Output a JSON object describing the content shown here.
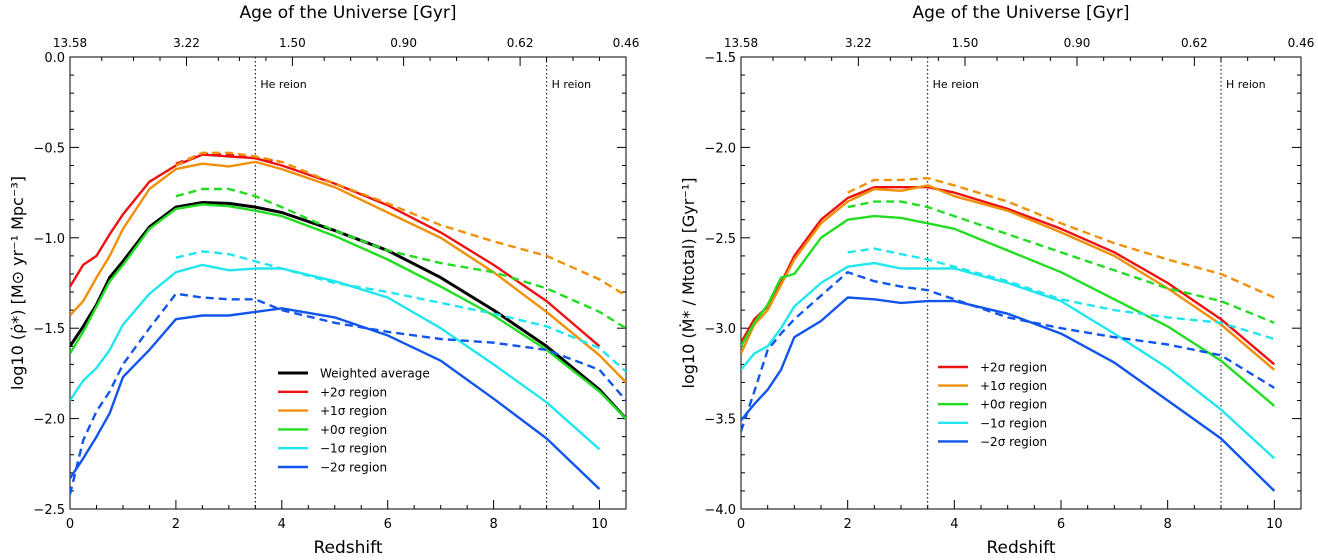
{
  "chart_data": [
    {
      "type": "line",
      "xlabel": "Redshift",
      "top_axis_label": "Age of the Universe [Gyr]",
      "ylabel": "log10 (ρ̇*) [M⊙ yr⁻¹ Mpc⁻³]",
      "xlim": [
        0,
        10.5
      ],
      "ylim": [
        -2.5,
        0.0
      ],
      "x_ticks": [
        0,
        2,
        4,
        6,
        8,
        10
      ],
      "y_ticks": [
        -2.5,
        -2.0,
        -1.5,
        -1.0,
        -0.5,
        0.0
      ],
      "y_tick_labels": [
        "−2.5",
        "−2.0",
        "−1.5",
        "−1.0",
        "−0.5",
        "0.0"
      ],
      "top_ticks": [
        {
          "z": 0,
          "label": "13.58"
        },
        {
          "z": 2.2,
          "label": "3.22"
        },
        {
          "z": 4.2,
          "label": "1.50"
        },
        {
          "z": 6.3,
          "label": "0.90"
        },
        {
          "z": 8.5,
          "label": "0.62"
        },
        {
          "z": 10.5,
          "label": "0.46"
        }
      ],
      "annotations": [
        {
          "x": 3.5,
          "text": "He reion"
        },
        {
          "x": 9.0,
          "text": "H reion"
        }
      ],
      "legend_position": "bottom-center",
      "series": [
        {
          "name": "Weighted average",
          "color": "#000000",
          "dash": false,
          "x": [
            0,
            0.25,
            0.5,
            0.75,
            1,
            1.5,
            2,
            2.5,
            3,
            3.5,
            4,
            5,
            6,
            7,
            8,
            9,
            10,
            10.5
          ],
          "y": [
            -1.6,
            -1.49,
            -1.37,
            -1.22,
            -1.13,
            -0.94,
            -0.83,
            -0.805,
            -0.81,
            -0.83,
            -0.86,
            -0.96,
            -1.07,
            -1.22,
            -1.4,
            -1.6,
            -1.84,
            -2.0
          ]
        },
        {
          "name": "+2σ region",
          "color": "#ee1111",
          "dash": false,
          "x": [
            0,
            0.25,
            0.5,
            0.75,
            1,
            1.5,
            2,
            2.5,
            3,
            3.5,
            4,
            5,
            6,
            7,
            8,
            9,
            10
          ],
          "y": [
            -1.27,
            -1.15,
            -1.1,
            -0.98,
            -0.87,
            -0.69,
            -0.6,
            -0.54,
            -0.55,
            -0.56,
            -0.6,
            -0.7,
            -0.82,
            -0.97,
            -1.15,
            -1.35,
            -1.6
          ]
        },
        {
          "name": "",
          "color": "#ee1111",
          "dash": true,
          "x": [
            2,
            2.5,
            3,
            3.5,
            4
          ],
          "y": [
            -0.59,
            -0.535,
            -0.54,
            -0.56,
            -0.58
          ]
        },
        {
          "name": "+1σ region",
          "color": "#f0900a",
          "dash": false,
          "x": [
            0,
            0.25,
            0.5,
            0.75,
            1,
            1.5,
            2,
            2.5,
            3,
            3.5,
            4,
            5,
            6,
            7,
            8,
            9,
            10,
            10.5
          ],
          "y": [
            -1.43,
            -1.35,
            -1.22,
            -1.1,
            -0.95,
            -0.73,
            -0.62,
            -0.59,
            -0.605,
            -0.58,
            -0.62,
            -0.72,
            -0.86,
            -1.0,
            -1.19,
            -1.41,
            -1.65,
            -1.8
          ]
        },
        {
          "name": "",
          "color": "#f0900a",
          "dash": true,
          "x": [
            2,
            2.5,
            3,
            3.5,
            4,
            5,
            6,
            7,
            8,
            9,
            10,
            10.5
          ],
          "y": [
            -0.6,
            -0.53,
            -0.53,
            -0.55,
            -0.58,
            -0.7,
            -0.81,
            -0.93,
            -1.02,
            -1.1,
            -1.23,
            -1.32
          ]
        },
        {
          "name": "+0σ region",
          "color": "#22dd22",
          "dash": false,
          "x": [
            0,
            0.25,
            0.5,
            0.75,
            1,
            1.5,
            2,
            2.5,
            3,
            3.5,
            4,
            5,
            6,
            7,
            8,
            9,
            10,
            10.5
          ],
          "y": [
            -1.64,
            -1.52,
            -1.38,
            -1.24,
            -1.15,
            -0.95,
            -0.84,
            -0.815,
            -0.825,
            -0.85,
            -0.88,
            -0.99,
            -1.12,
            -1.27,
            -1.43,
            -1.62,
            -1.85,
            -2.0
          ]
        },
        {
          "name": "",
          "color": "#22dd22",
          "dash": true,
          "x": [
            2,
            2.5,
            3,
            3.5,
            4,
            5,
            6,
            7,
            8,
            9,
            10,
            10.5
          ],
          "y": [
            -0.77,
            -0.73,
            -0.73,
            -0.77,
            -0.83,
            -0.96,
            -1.07,
            -1.14,
            -1.19,
            -1.28,
            -1.41,
            -1.5
          ]
        },
        {
          "name": "−1σ region",
          "color": "#22e6ee",
          "dash": false,
          "x": [
            0,
            0.25,
            0.5,
            0.75,
            1,
            1.5,
            2,
            2.5,
            3,
            3.5,
            4,
            5,
            6,
            7,
            8,
            9,
            10
          ],
          "y": [
            -1.9,
            -1.79,
            -1.72,
            -1.62,
            -1.48,
            -1.31,
            -1.19,
            -1.15,
            -1.18,
            -1.17,
            -1.17,
            -1.24,
            -1.33,
            -1.5,
            -1.7,
            -1.91,
            -2.17
          ]
        },
        {
          "name": "",
          "color": "#22e6ee",
          "dash": true,
          "x": [
            2,
            2.5,
            3,
            3.5,
            4,
            5,
            6,
            7,
            8,
            9,
            10,
            10.5
          ],
          "y": [
            -1.11,
            -1.075,
            -1.09,
            -1.13,
            -1.17,
            -1.25,
            -1.3,
            -1.36,
            -1.42,
            -1.49,
            -1.61,
            -1.74
          ]
        },
        {
          "name": "−2σ region",
          "color": "#1155ee",
          "dash": false,
          "x": [
            0,
            0.25,
            0.5,
            0.75,
            1,
            1.5,
            2,
            2.5,
            3,
            3.5,
            4,
            5,
            6,
            7,
            8,
            9,
            10
          ],
          "y": [
            -2.33,
            -2.22,
            -2.1,
            -1.97,
            -1.77,
            -1.62,
            -1.45,
            -1.43,
            -1.43,
            -1.41,
            -1.39,
            -1.44,
            -1.54,
            -1.68,
            -1.89,
            -2.11,
            -2.39
          ]
        },
        {
          "name": "",
          "color": "#1155ee",
          "dash": true,
          "x": [
            0,
            0.25,
            0.5,
            0.75,
            1,
            1.5,
            2,
            2.5,
            3,
            3.5,
            4,
            5,
            6,
            7,
            8,
            9,
            10,
            10.5
          ],
          "y": [
            -2.42,
            -2.12,
            -1.96,
            -1.85,
            -1.7,
            -1.5,
            -1.31,
            -1.33,
            -1.34,
            -1.34,
            -1.4,
            -1.47,
            -1.52,
            -1.56,
            -1.58,
            -1.62,
            -1.73,
            -1.9
          ]
        }
      ]
    },
    {
      "type": "line",
      "xlabel": "Redshift",
      "top_axis_label": "Age of the Universe [Gyr]",
      "ylabel": "log10 (Ṁ* / Mtotal) [Gyr⁻¹]",
      "xlim": [
        0,
        10.5
      ],
      "ylim": [
        -4.0,
        -1.5
      ],
      "x_ticks": [
        0,
        2,
        4,
        6,
        8,
        10
      ],
      "y_ticks": [
        -4.0,
        -3.5,
        -3.0,
        -2.5,
        -2.0,
        -1.5
      ],
      "y_tick_labels": [
        "−4.0",
        "−3.5",
        "−3.0",
        "−2.5",
        "−2.0",
        "−1.5"
      ],
      "top_ticks": [
        {
          "z": 0,
          "label": "13.58"
        },
        {
          "z": 2.2,
          "label": "3.22"
        },
        {
          "z": 4.2,
          "label": "1.50"
        },
        {
          "z": 6.3,
          "label": "0.90"
        },
        {
          "z": 8.5,
          "label": "0.62"
        },
        {
          "z": 10.5,
          "label": "0.46"
        }
      ],
      "annotations": [
        {
          "x": 3.5,
          "text": "He reion"
        },
        {
          "x": 9.0,
          "text": "H reion"
        }
      ],
      "legend_position": "bottom-center",
      "series": [
        {
          "name": "+2σ region",
          "color": "#ee1111",
          "dash": false,
          "x": [
            0,
            0.25,
            0.5,
            0.75,
            1,
            1.5,
            2,
            2.5,
            3,
            3.5,
            4,
            5,
            6,
            7,
            8,
            9,
            10
          ],
          "y": [
            -3.08,
            -2.95,
            -2.88,
            -2.75,
            -2.6,
            -2.4,
            -2.28,
            -2.22,
            -2.22,
            -2.22,
            -2.25,
            -2.34,
            -2.45,
            -2.58,
            -2.75,
            -2.95,
            -3.2
          ]
        },
        {
          "name": "",
          "color": "#f0900a",
          "dash": true,
          "x": [
            2,
            2.5,
            3,
            3.5,
            4,
            5,
            6,
            7,
            8,
            9,
            10
          ],
          "y": [
            -2.25,
            -2.18,
            -2.18,
            -2.17,
            -2.21,
            -2.3,
            -2.42,
            -2.53,
            -2.62,
            -2.7,
            -2.83
          ]
        },
        {
          "name": "+1σ region",
          "color": "#f0900a",
          "dash": false,
          "x": [
            0,
            0.25,
            0.5,
            0.75,
            1,
            1.5,
            2,
            2.5,
            3,
            3.5,
            4,
            5,
            6,
            7,
            8,
            9,
            10
          ],
          "y": [
            -3.14,
            -2.98,
            -2.9,
            -2.76,
            -2.62,
            -2.42,
            -2.3,
            -2.23,
            -2.24,
            -2.21,
            -2.27,
            -2.35,
            -2.47,
            -2.6,
            -2.78,
            -2.98,
            -3.23
          ]
        },
        {
          "name": "+0σ region",
          "color": "#22dd22",
          "dash": false,
          "x": [
            0,
            0.25,
            0.5,
            0.75,
            1,
            1.5,
            2,
            2.5,
            3,
            3.5,
            4,
            5,
            6,
            7,
            8,
            9,
            10
          ],
          "y": [
            -3.1,
            -2.97,
            -2.87,
            -2.72,
            -2.7,
            -2.5,
            -2.4,
            -2.38,
            -2.39,
            -2.42,
            -2.45,
            -2.57,
            -2.69,
            -2.84,
            -2.99,
            -3.18,
            -3.43
          ]
        },
        {
          "name": "",
          "color": "#22dd22",
          "dash": true,
          "x": [
            2,
            2.5,
            3,
            3.5,
            4,
            5,
            6,
            7,
            8,
            9,
            10
          ],
          "y": [
            -2.33,
            -2.3,
            -2.3,
            -2.33,
            -2.38,
            -2.48,
            -2.58,
            -2.68,
            -2.78,
            -2.85,
            -2.97
          ]
        },
        {
          "name": "−1σ region",
          "color": "#22e6ee",
          "dash": false,
          "x": [
            0,
            0.25,
            0.5,
            0.75,
            1,
            1.5,
            2,
            2.5,
            3,
            3.5,
            4,
            5,
            6,
            7,
            8,
            9,
            10
          ],
          "y": [
            -3.23,
            -3.14,
            -3.1,
            -3.0,
            -2.88,
            -2.75,
            -2.66,
            -2.64,
            -2.67,
            -2.67,
            -2.67,
            -2.75,
            -2.85,
            -3.03,
            -3.22,
            -3.45,
            -3.72
          ]
        },
        {
          "name": "",
          "color": "#22e6ee",
          "dash": true,
          "x": [
            2,
            2.5,
            3,
            3.5,
            4,
            5,
            6,
            7,
            8,
            9,
            10
          ],
          "y": [
            -2.58,
            -2.56,
            -2.59,
            -2.62,
            -2.66,
            -2.74,
            -2.84,
            -2.9,
            -2.94,
            -2.97,
            -3.06
          ]
        },
        {
          "name": "−2σ region",
          "color": "#1155ee",
          "dash": false,
          "x": [
            0,
            0.25,
            0.5,
            0.75,
            1,
            1.5,
            2,
            2.5,
            3,
            3.5,
            4,
            5,
            6,
            7,
            8,
            9,
            10
          ],
          "y": [
            -3.51,
            -3.42,
            -3.34,
            -3.23,
            -3.05,
            -2.96,
            -2.83,
            -2.84,
            -2.86,
            -2.85,
            -2.85,
            -2.92,
            -3.03,
            -3.19,
            -3.4,
            -3.61,
            -3.9
          ]
        },
        {
          "name": "",
          "color": "#1155ee",
          "dash": true,
          "x": [
            0,
            0.25,
            0.5,
            0.75,
            1,
            1.5,
            2,
            2.5,
            3,
            3.5,
            4,
            5,
            6,
            7,
            8,
            9,
            10
          ],
          "y": [
            -3.57,
            -3.35,
            -3.12,
            -3.03,
            -2.95,
            -2.82,
            -2.69,
            -2.74,
            -2.77,
            -2.79,
            -2.84,
            -2.94,
            -3.0,
            -3.05,
            -3.09,
            -3.15,
            -3.33
          ]
        }
      ]
    }
  ]
}
